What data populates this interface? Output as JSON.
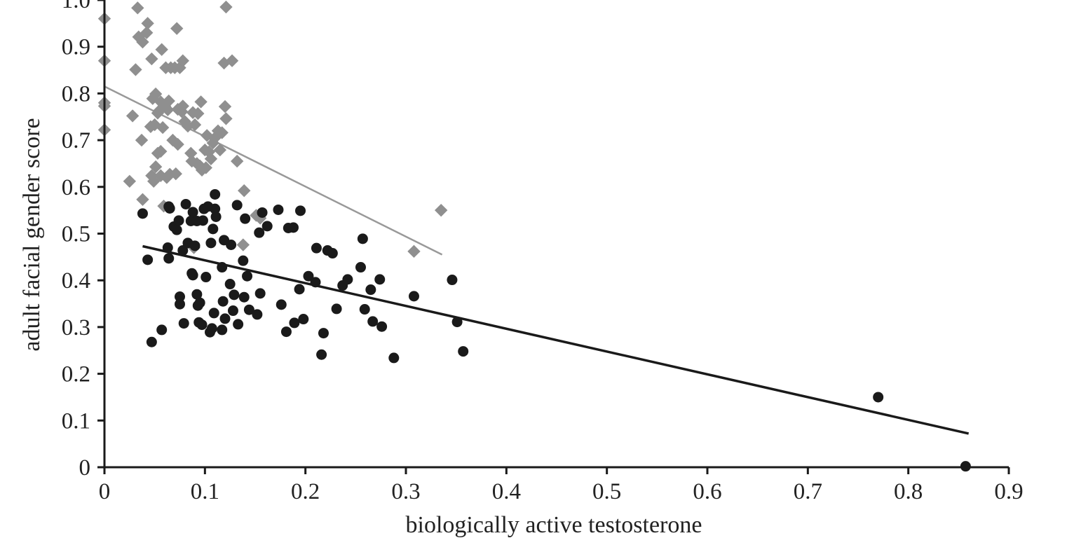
{
  "chart_data": {
    "type": "scatter",
    "xlabel": "biologically active testosterone",
    "ylabel": "adult facial gender score",
    "xlim": [
      0,
      0.9
    ],
    "ylim": [
      0,
      1.0
    ],
    "xticks": [
      "0",
      "0.1",
      "0.2",
      "0.3",
      "0.4",
      "0.5",
      "0.6",
      "0.7",
      "0.8",
      "0.9"
    ],
    "yticks": [
      "0",
      "0.1",
      "0.2",
      "0.3",
      "0.4",
      "0.5",
      "0.6",
      "0.7",
      "0.8",
      "0.9",
      "1.0"
    ],
    "grid": false,
    "legend": "none",
    "series": [
      {
        "marker": "diamond",
        "color": "#8f8f8f",
        "points": [
          [
            0.0,
            0.96
          ],
          [
            0.0,
            0.87
          ],
          [
            0.0,
            0.78
          ],
          [
            0.0,
            0.773
          ],
          [
            0.0,
            0.722
          ],
          [
            0.025,
            0.612
          ],
          [
            0.028,
            0.752
          ],
          [
            0.031,
            0.851
          ],
          [
            0.033,
            0.983
          ],
          [
            0.034,
            0.921
          ],
          [
            0.037,
            0.7
          ],
          [
            0.038,
            0.573
          ],
          [
            0.038,
            0.91
          ],
          [
            0.042,
            0.93
          ],
          [
            0.043,
            0.95
          ],
          [
            0.046,
            0.729
          ],
          [
            0.047,
            0.874
          ],
          [
            0.047,
            0.624
          ],
          [
            0.048,
            0.789
          ],
          [
            0.049,
            0.612
          ],
          [
            0.05,
            0.733
          ],
          [
            0.051,
            0.643
          ],
          [
            0.051,
            0.799
          ],
          [
            0.053,
            0.672
          ],
          [
            0.053,
            0.758
          ],
          [
            0.055,
            0.764
          ],
          [
            0.056,
            0.624
          ],
          [
            0.056,
            0.676
          ],
          [
            0.056,
            0.782
          ],
          [
            0.057,
            0.894
          ],
          [
            0.058,
            0.727
          ],
          [
            0.059,
            0.559
          ],
          [
            0.06,
            0.773
          ],
          [
            0.061,
            0.855
          ],
          [
            0.062,
            0.62
          ],
          [
            0.063,
            0.765
          ],
          [
            0.064,
            0.784
          ],
          [
            0.065,
            0.627
          ],
          [
            0.066,
            0.855
          ],
          [
            0.068,
            0.7
          ],
          [
            0.07,
            0.855
          ],
          [
            0.071,
            0.628
          ],
          [
            0.072,
            0.939
          ],
          [
            0.073,
            0.766
          ],
          [
            0.073,
            0.691
          ],
          [
            0.075,
            0.855
          ],
          [
            0.077,
            0.761
          ],
          [
            0.078,
            0.87
          ],
          [
            0.078,
            0.773
          ],
          [
            0.08,
            0.74
          ],
          [
            0.083,
            0.73
          ],
          [
            0.086,
            0.672
          ],
          [
            0.087,
            0.655
          ],
          [
            0.088,
            0.759
          ],
          [
            0.089,
            0.47
          ],
          [
            0.09,
            0.733
          ],
          [
            0.092,
            0.65
          ],
          [
            0.093,
            0.757
          ],
          [
            0.095,
            0.645
          ],
          [
            0.096,
            0.782
          ],
          [
            0.097,
            0.636
          ],
          [
            0.1,
            0.679
          ],
          [
            0.101,
            0.641
          ],
          [
            0.102,
            0.71
          ],
          [
            0.104,
            0.675
          ],
          [
            0.106,
            0.66
          ],
          [
            0.108,
            0.694
          ],
          [
            0.11,
            0.705
          ],
          [
            0.113,
            0.72
          ],
          [
            0.115,
            0.679
          ],
          [
            0.117,
            0.716
          ],
          [
            0.119,
            0.865
          ],
          [
            0.12,
            0.772
          ],
          [
            0.121,
            0.985
          ],
          [
            0.121,
            0.746
          ],
          [
            0.127,
            0.87
          ],
          [
            0.132,
            0.655
          ],
          [
            0.138,
            0.476
          ],
          [
            0.139,
            0.592
          ],
          [
            0.151,
            0.539
          ],
          [
            0.155,
            0.533
          ],
          [
            0.308,
            0.462
          ],
          [
            0.335,
            0.55
          ]
        ]
      },
      {
        "marker": "circle",
        "color": "#1a1a1a",
        "points": [
          [
            0.038,
            0.543
          ],
          [
            0.043,
            0.444
          ],
          [
            0.047,
            0.268
          ],
          [
            0.057,
            0.294
          ],
          [
            0.063,
            0.47
          ],
          [
            0.064,
            0.447
          ],
          [
            0.064,
            0.558
          ],
          [
            0.065,
            0.554
          ],
          [
            0.069,
            0.515
          ],
          [
            0.072,
            0.508
          ],
          [
            0.074,
            0.528
          ],
          [
            0.075,
            0.365
          ],
          [
            0.075,
            0.349
          ],
          [
            0.078,
            0.464
          ],
          [
            0.079,
            0.308
          ],
          [
            0.081,
            0.563
          ],
          [
            0.083,
            0.48
          ],
          [
            0.086,
            0.527
          ],
          [
            0.087,
            0.415
          ],
          [
            0.088,
            0.411
          ],
          [
            0.088,
            0.546
          ],
          [
            0.09,
            0.474
          ],
          [
            0.092,
            0.527
          ],
          [
            0.092,
            0.37
          ],
          [
            0.093,
            0.346
          ],
          [
            0.094,
            0.31
          ],
          [
            0.095,
            0.352
          ],
          [
            0.097,
            0.305
          ],
          [
            0.098,
            0.528
          ],
          [
            0.099,
            0.553
          ],
          [
            0.101,
            0.407
          ],
          [
            0.103,
            0.558
          ],
          [
            0.105,
            0.289
          ],
          [
            0.106,
            0.48
          ],
          [
            0.107,
            0.297
          ],
          [
            0.108,
            0.51
          ],
          [
            0.109,
            0.33
          ],
          [
            0.11,
            0.584
          ],
          [
            0.11,
            0.553
          ],
          [
            0.111,
            0.536
          ],
          [
            0.117,
            0.428
          ],
          [
            0.117,
            0.294
          ],
          [
            0.118,
            0.355
          ],
          [
            0.119,
            0.486
          ],
          [
            0.12,
            0.318
          ],
          [
            0.125,
            0.392
          ],
          [
            0.126,
            0.476
          ],
          [
            0.128,
            0.335
          ],
          [
            0.129,
            0.369
          ],
          [
            0.132,
            0.561
          ],
          [
            0.133,
            0.306
          ],
          [
            0.138,
            0.442
          ],
          [
            0.139,
            0.364
          ],
          [
            0.14,
            0.532
          ],
          [
            0.142,
            0.409
          ],
          [
            0.144,
            0.337
          ],
          [
            0.152,
            0.327
          ],
          [
            0.154,
            0.502
          ],
          [
            0.155,
            0.372
          ],
          [
            0.157,
            0.545
          ],
          [
            0.162,
            0.516
          ],
          [
            0.173,
            0.551
          ],
          [
            0.176,
            0.348
          ],
          [
            0.181,
            0.29
          ],
          [
            0.183,
            0.512
          ],
          [
            0.188,
            0.513
          ],
          [
            0.189,
            0.309
          ],
          [
            0.194,
            0.381
          ],
          [
            0.195,
            0.549
          ],
          [
            0.198,
            0.317
          ],
          [
            0.203,
            0.409
          ],
          [
            0.21,
            0.396
          ],
          [
            0.211,
            0.469
          ],
          [
            0.216,
            0.241
          ],
          [
            0.218,
            0.287
          ],
          [
            0.222,
            0.464
          ],
          [
            0.227,
            0.458
          ],
          [
            0.231,
            0.339
          ],
          [
            0.237,
            0.389
          ],
          [
            0.242,
            0.402
          ],
          [
            0.255,
            0.428
          ],
          [
            0.257,
            0.489
          ],
          [
            0.259,
            0.338
          ],
          [
            0.265,
            0.38
          ],
          [
            0.267,
            0.312
          ],
          [
            0.274,
            0.402
          ],
          [
            0.276,
            0.301
          ],
          [
            0.288,
            0.234
          ],
          [
            0.308,
            0.366
          ],
          [
            0.346,
            0.401
          ],
          [
            0.351,
            0.311
          ],
          [
            0.357,
            0.248
          ],
          [
            0.77,
            0.15
          ],
          [
            0.857,
            0.002
          ]
        ]
      }
    ],
    "trend_lines": [
      {
        "color": "#999999",
        "from": [
          0.0,
          0.815
        ],
        "to": [
          0.336,
          0.455
        ]
      },
      {
        "color": "#1a1a1a",
        "from": [
          0.038,
          0.473
        ],
        "to": [
          0.86,
          0.072
        ]
      }
    ]
  }
}
